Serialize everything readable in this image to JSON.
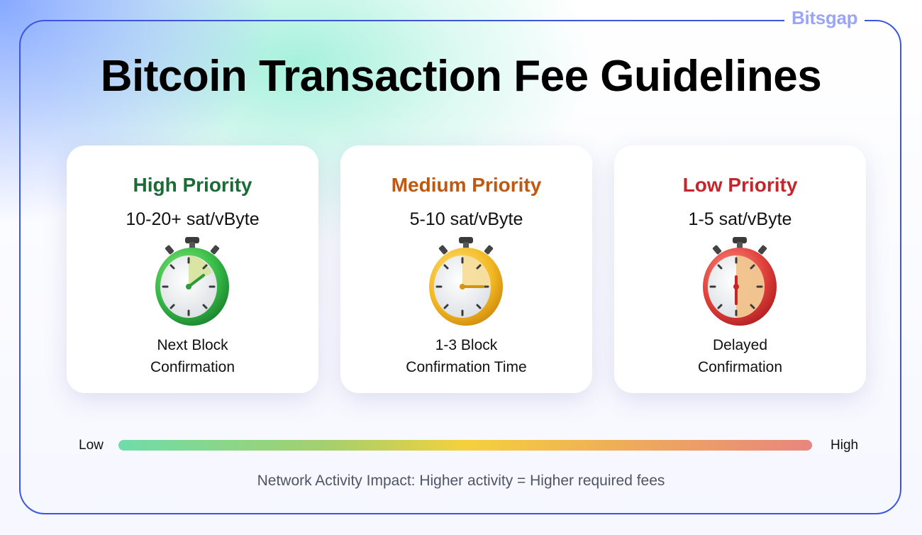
{
  "brand": "Bitsgap",
  "title": "Bitcoin Transaction Fee Guidelines",
  "cards": [
    {
      "title": "High Priority",
      "rate": "10-20+ sat/vByte",
      "desc_line1": "Next Block",
      "desc_line2": "Confirmation",
      "title_color": "#1a6b36",
      "icon": "stopwatch-green-icon"
    },
    {
      "title": "Medium Priority",
      "rate": "5-10 sat/vByte",
      "desc_line1": "1-3 Block",
      "desc_line2": "Confirmation Time",
      "title_color": "#c0580f",
      "icon": "stopwatch-yellow-icon"
    },
    {
      "title": "Low Priority",
      "rate": "1-5 sat/vByte",
      "desc_line1": "Delayed",
      "desc_line2": "Confirmation",
      "title_color": "#c4262b",
      "icon": "stopwatch-red-icon"
    }
  ],
  "scale": {
    "low": "Low",
    "high": "High"
  },
  "footer": "Network Activity Impact: Higher activity = Higher required fees",
  "colors": {
    "frame": "#3d55e3",
    "brand": "#9aa6f5",
    "gradient_start": "#6fdca8",
    "gradient_mid": "#f4d13c",
    "gradient_end": "#e9857f"
  }
}
